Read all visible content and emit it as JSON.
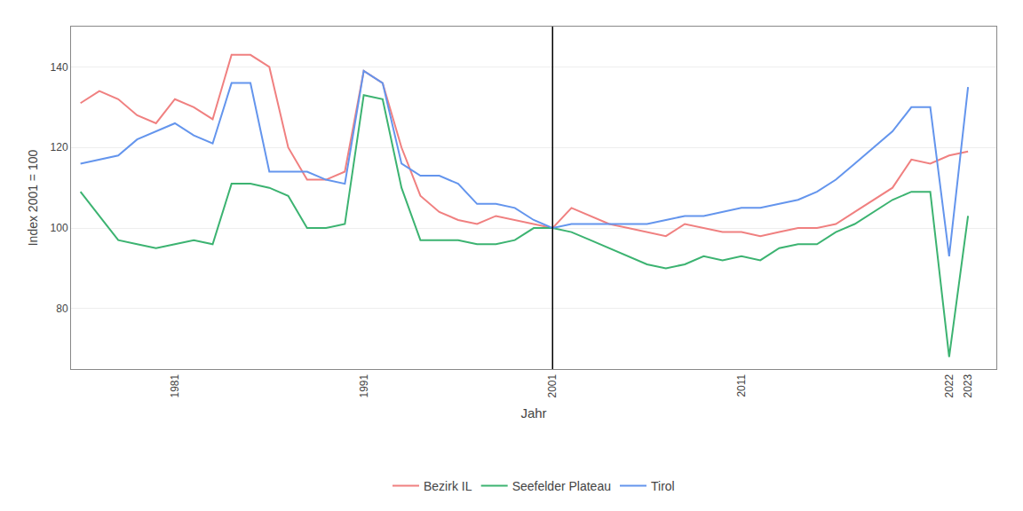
{
  "chart_data": {
    "type": "line",
    "xlabel": "Jahr",
    "ylabel": "Index 2001 = 100",
    "x": [
      1976,
      1977,
      1978,
      1979,
      1980,
      1981,
      1982,
      1983,
      1984,
      1985,
      1986,
      1987,
      1988,
      1989,
      1990,
      1991,
      1992,
      1993,
      1994,
      1995,
      1996,
      1997,
      1998,
      1999,
      2000,
      2001,
      2002,
      2003,
      2004,
      2005,
      2006,
      2007,
      2008,
      2009,
      2010,
      2011,
      2012,
      2013,
      2014,
      2015,
      2016,
      2017,
      2018,
      2019,
      2020,
      2021,
      2022,
      2023
    ],
    "series": [
      {
        "name": "Bezirk IL",
        "color": "#F08080",
        "values": [
          131,
          134,
          132,
          128,
          126,
          132,
          130,
          127,
          143,
          143,
          140,
          120,
          112,
          112,
          114,
          139,
          136,
          120,
          108,
          104,
          102,
          101,
          103,
          102,
          101,
          100,
          105,
          103,
          101,
          100,
          99,
          98,
          101,
          100,
          99,
          99,
          98,
          99,
          100,
          100,
          101,
          104,
          107,
          110,
          117,
          116,
          118,
          119
        ]
      },
      {
        "name": "Seefelder Plateau",
        "color": "#3CB371",
        "values": [
          109,
          103,
          97,
          96,
          95,
          96,
          97,
          96,
          111,
          111,
          110,
          108,
          100,
          100,
          101,
          133,
          132,
          110,
          97,
          97,
          97,
          96,
          96,
          97,
          100,
          100,
          99,
          97,
          95,
          93,
          91,
          90,
          91,
          93,
          92,
          93,
          92,
          95,
          96,
          96,
          99,
          101,
          104,
          107,
          109,
          109,
          68,
          103
        ]
      },
      {
        "name": "Tirol",
        "color": "#6495ED",
        "values": [
          116,
          117,
          118,
          122,
          124,
          126,
          123,
          121,
          136,
          136,
          114,
          114,
          114,
          112,
          111,
          139,
          136,
          116,
          113,
          113,
          111,
          106,
          106,
          105,
          102,
          100,
          101,
          101,
          101,
          101,
          101,
          102,
          103,
          103,
          104,
          105,
          105,
          106,
          107,
          109,
          112,
          116,
          120,
          124,
          130,
          130,
          93,
          135
        ]
      }
    ],
    "vline": {
      "x": 2001,
      "color": "#000000"
    },
    "xlim": [
      1975.5,
      2024.5
    ],
    "xticks": [
      1981,
      1991,
      2001,
      2011,
      2022,
      2023
    ],
    "ylim": [
      65,
      150
    ],
    "yticks": [
      80,
      100,
      120,
      140
    ],
    "grid": "y",
    "legend": "bottom"
  }
}
